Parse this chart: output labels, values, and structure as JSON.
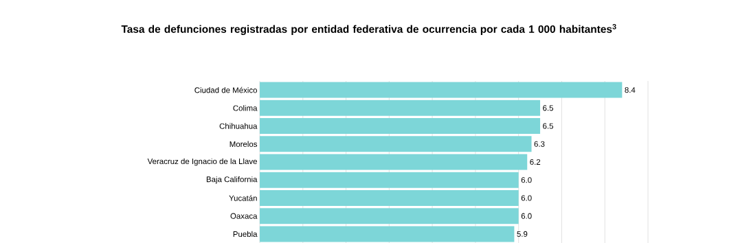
{
  "chart_data": {
    "type": "bar",
    "orientation": "horizontal",
    "title": "Tasa de defunciones registradas por entidad federativa de ocurrencia por cada 1 000 habitantes$^{3}$",
    "categories": [
      "Ciudad de México",
      "Colima",
      "Chihuahua",
      "Morelos",
      "Veracruz de Ignacio de la Llave",
      "Baja California",
      "Yucatán",
      "Oaxaca",
      "Puebla"
    ],
    "values": [
      8.4,
      6.5,
      6.5,
      6.3,
      6.2,
      6.0,
      6.0,
      6.0,
      5.9
    ],
    "value_labels": [
      "8.4",
      "6.5",
      "6.5",
      "6.3",
      "6.2",
      "6.0",
      "6.0",
      "6.0",
      "5.9"
    ],
    "color": "#7dd6d8",
    "xlim": [
      0,
      9
    ],
    "xticks": [
      {
        "value": 0,
        "label": null
      },
      {
        "value": 1,
        "label": null
      },
      {
        "value": 2,
        "label": null
      },
      {
        "value": 3,
        "label": null
      },
      {
        "value": 4,
        "label": null
      },
      {
        "value": 5,
        "label": null
      },
      {
        "value": 6,
        "label": null
      },
      {
        "value": 7,
        "label": null
      },
      {
        "value": 8,
        "label": null
      },
      {
        "value": 9,
        "label": null
      }
    ],
    "grid": "x"
  }
}
